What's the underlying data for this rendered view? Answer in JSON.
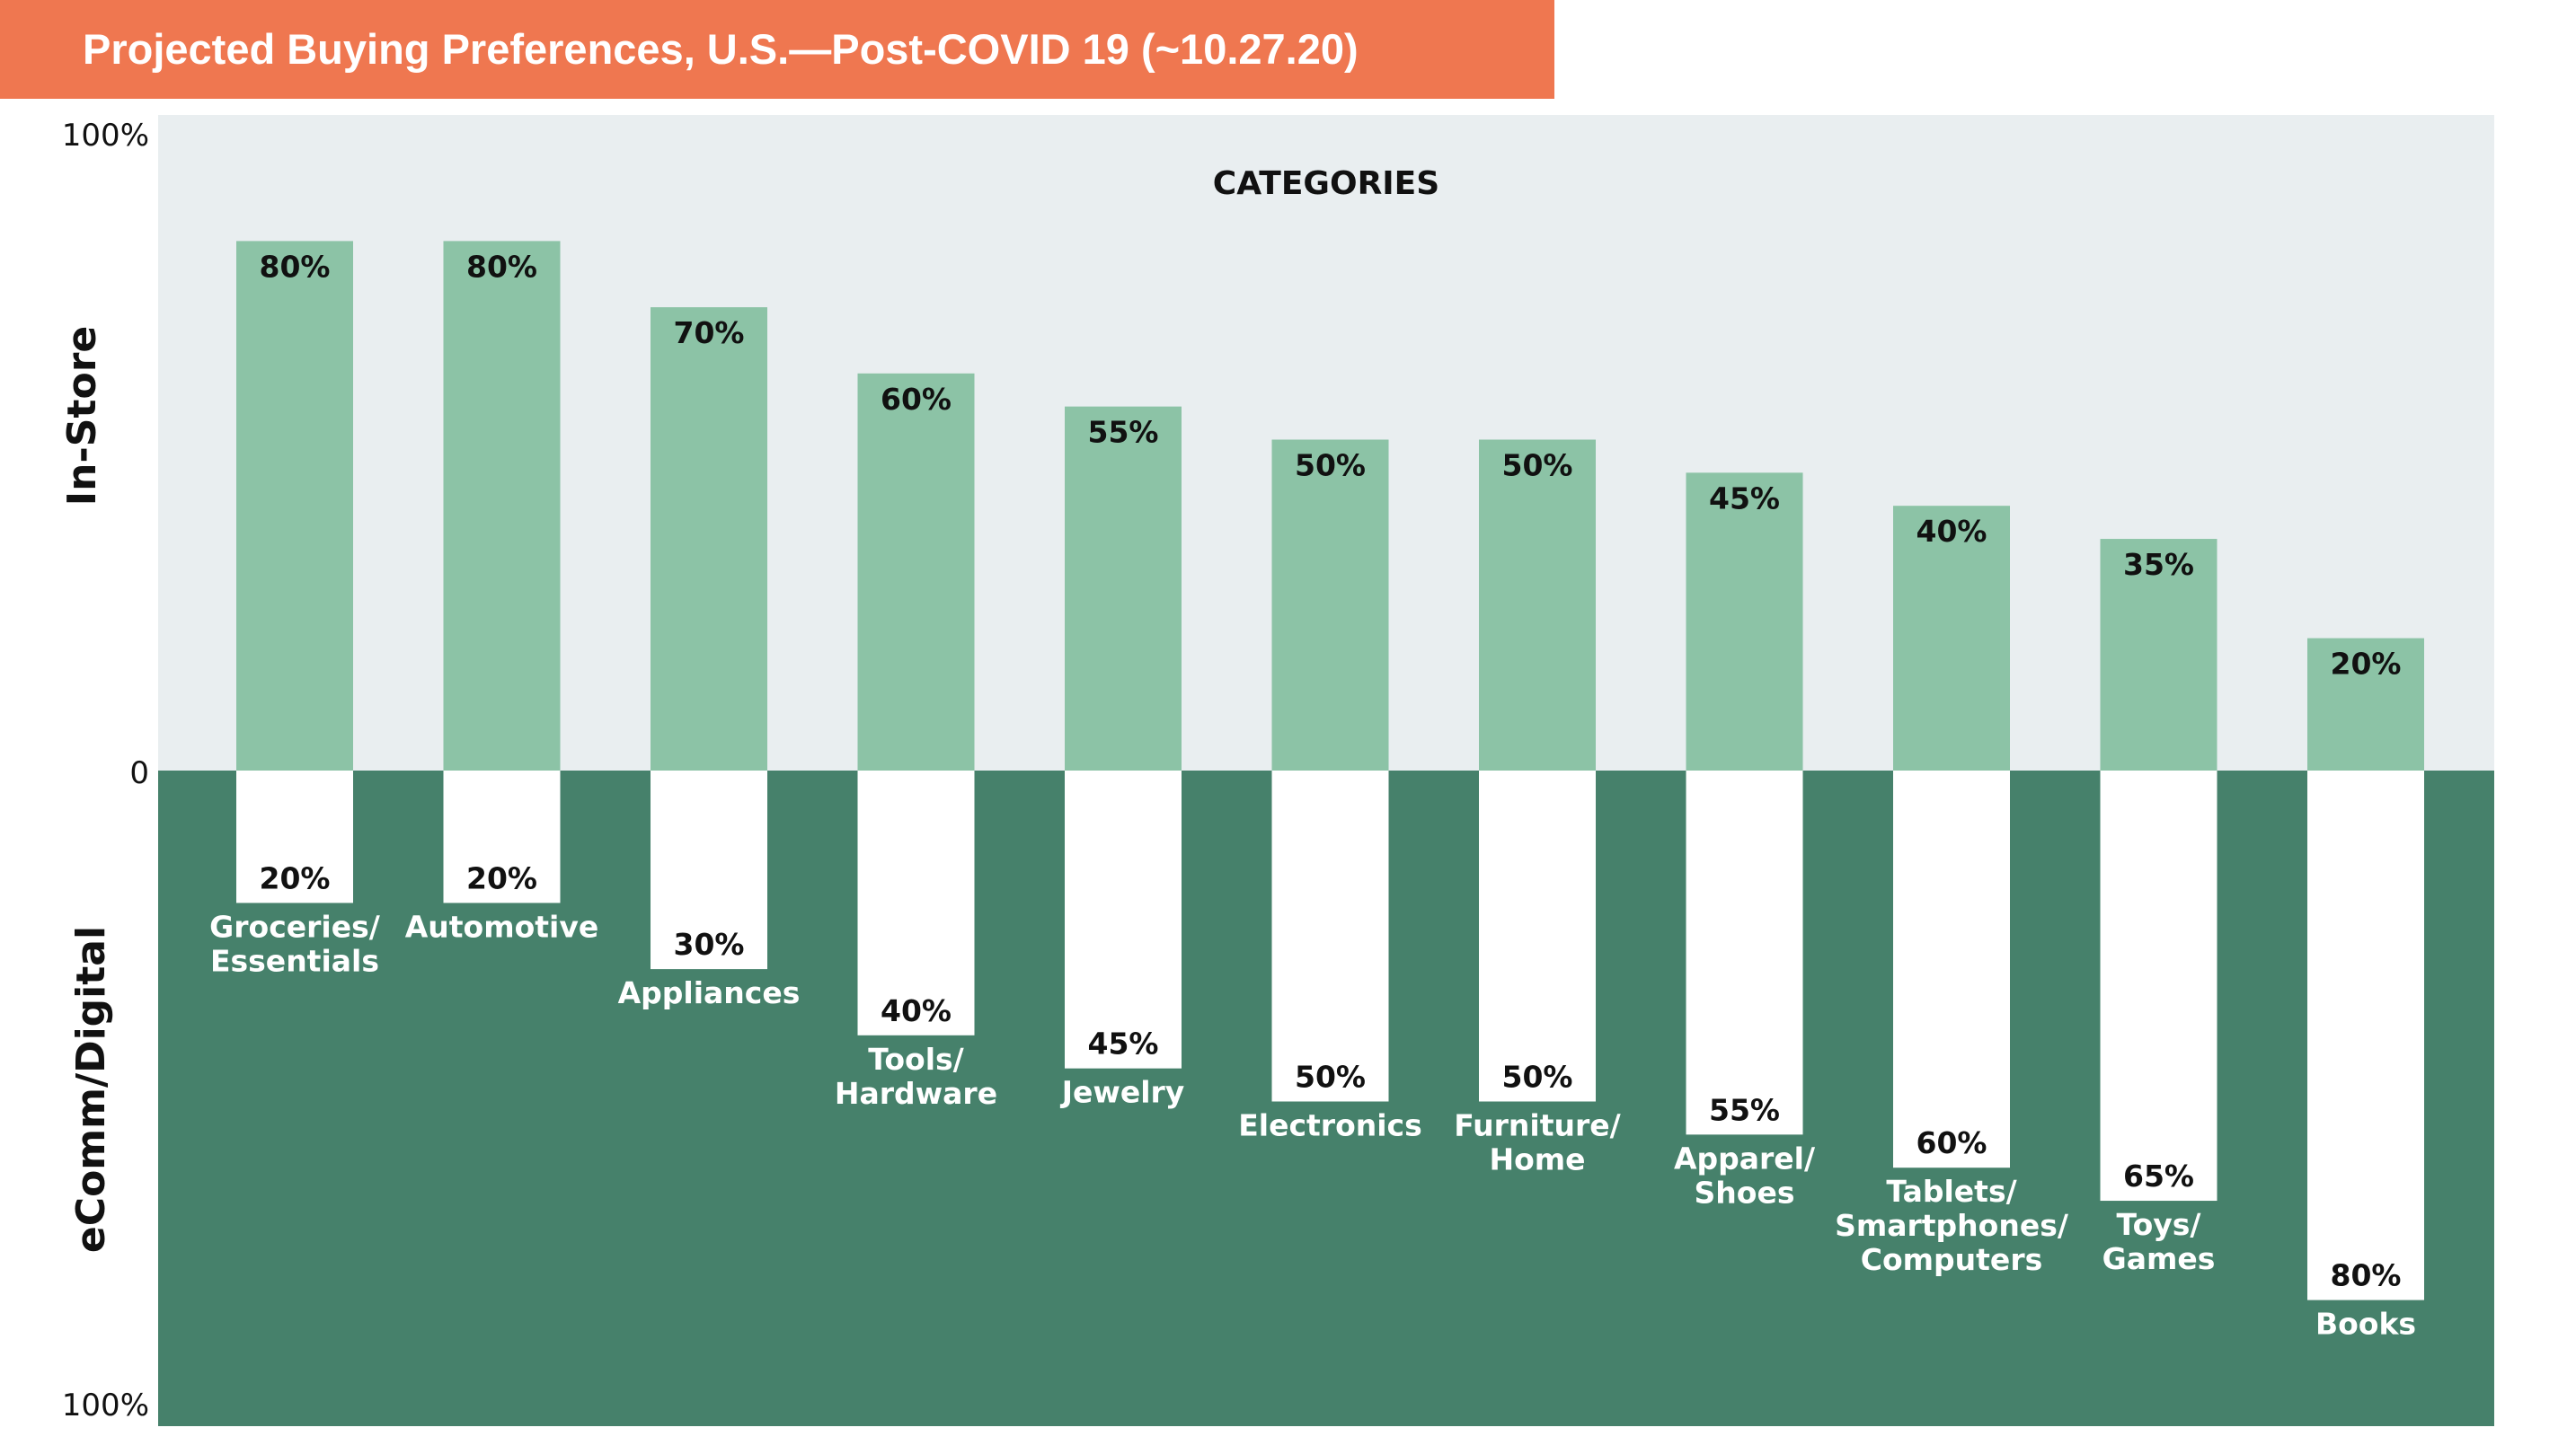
{
  "title": "Projected Buying Preferences, U.S.—Post-COVID 19 (~10.27.20)",
  "colors": {
    "title_bg": "#ef7750",
    "upper_panel_bg": "#e9eef0",
    "upper_bar": "#8cc3a6",
    "lower_panel_bg": "#46816b",
    "lower_bar": "#ffffff"
  },
  "chart_data": {
    "type": "bar",
    "title": "Projected Buying Preferences, U.S.—Post-COVID 19 (~10.27.20)",
    "panel_heading": "CATEGORIES",
    "ylabel_top": "In-Store",
    "ylabel_bottom": "eComm/Digital",
    "y_ticks": [
      "100%",
      "0",
      "100%"
    ],
    "ylim": [
      0,
      100
    ],
    "grid": false,
    "legend": "none",
    "categories": [
      [
        "Groceries/",
        "Essentials"
      ],
      [
        "Automotive"
      ],
      [
        "Appliances"
      ],
      [
        "Tools/",
        "Hardware"
      ],
      [
        "Jewelry"
      ],
      [
        "Electronics"
      ],
      [
        "Furniture/",
        "Home"
      ],
      [
        "Apparel/",
        "Shoes"
      ],
      [
        "Tablets/",
        "Smartphones/",
        "Computers"
      ],
      [
        "Toys/",
        "Games"
      ],
      [
        "Books"
      ]
    ],
    "series": [
      {
        "name": "In-Store",
        "values": [
          80,
          80,
          70,
          60,
          55,
          50,
          50,
          45,
          40,
          35,
          20
        ],
        "labels": [
          "80%",
          "80%",
          "70%",
          "60%",
          "55%",
          "50%",
          "50%",
          "45%",
          "40%",
          "35%",
          "20%"
        ]
      },
      {
        "name": "eComm/Digital",
        "values": [
          20,
          20,
          30,
          40,
          45,
          50,
          50,
          55,
          60,
          65,
          80
        ],
        "labels": [
          "20%",
          "20%",
          "30%",
          "40%",
          "45%",
          "50%",
          "50%",
          "55%",
          "60%",
          "65%",
          "80%"
        ]
      }
    ]
  }
}
